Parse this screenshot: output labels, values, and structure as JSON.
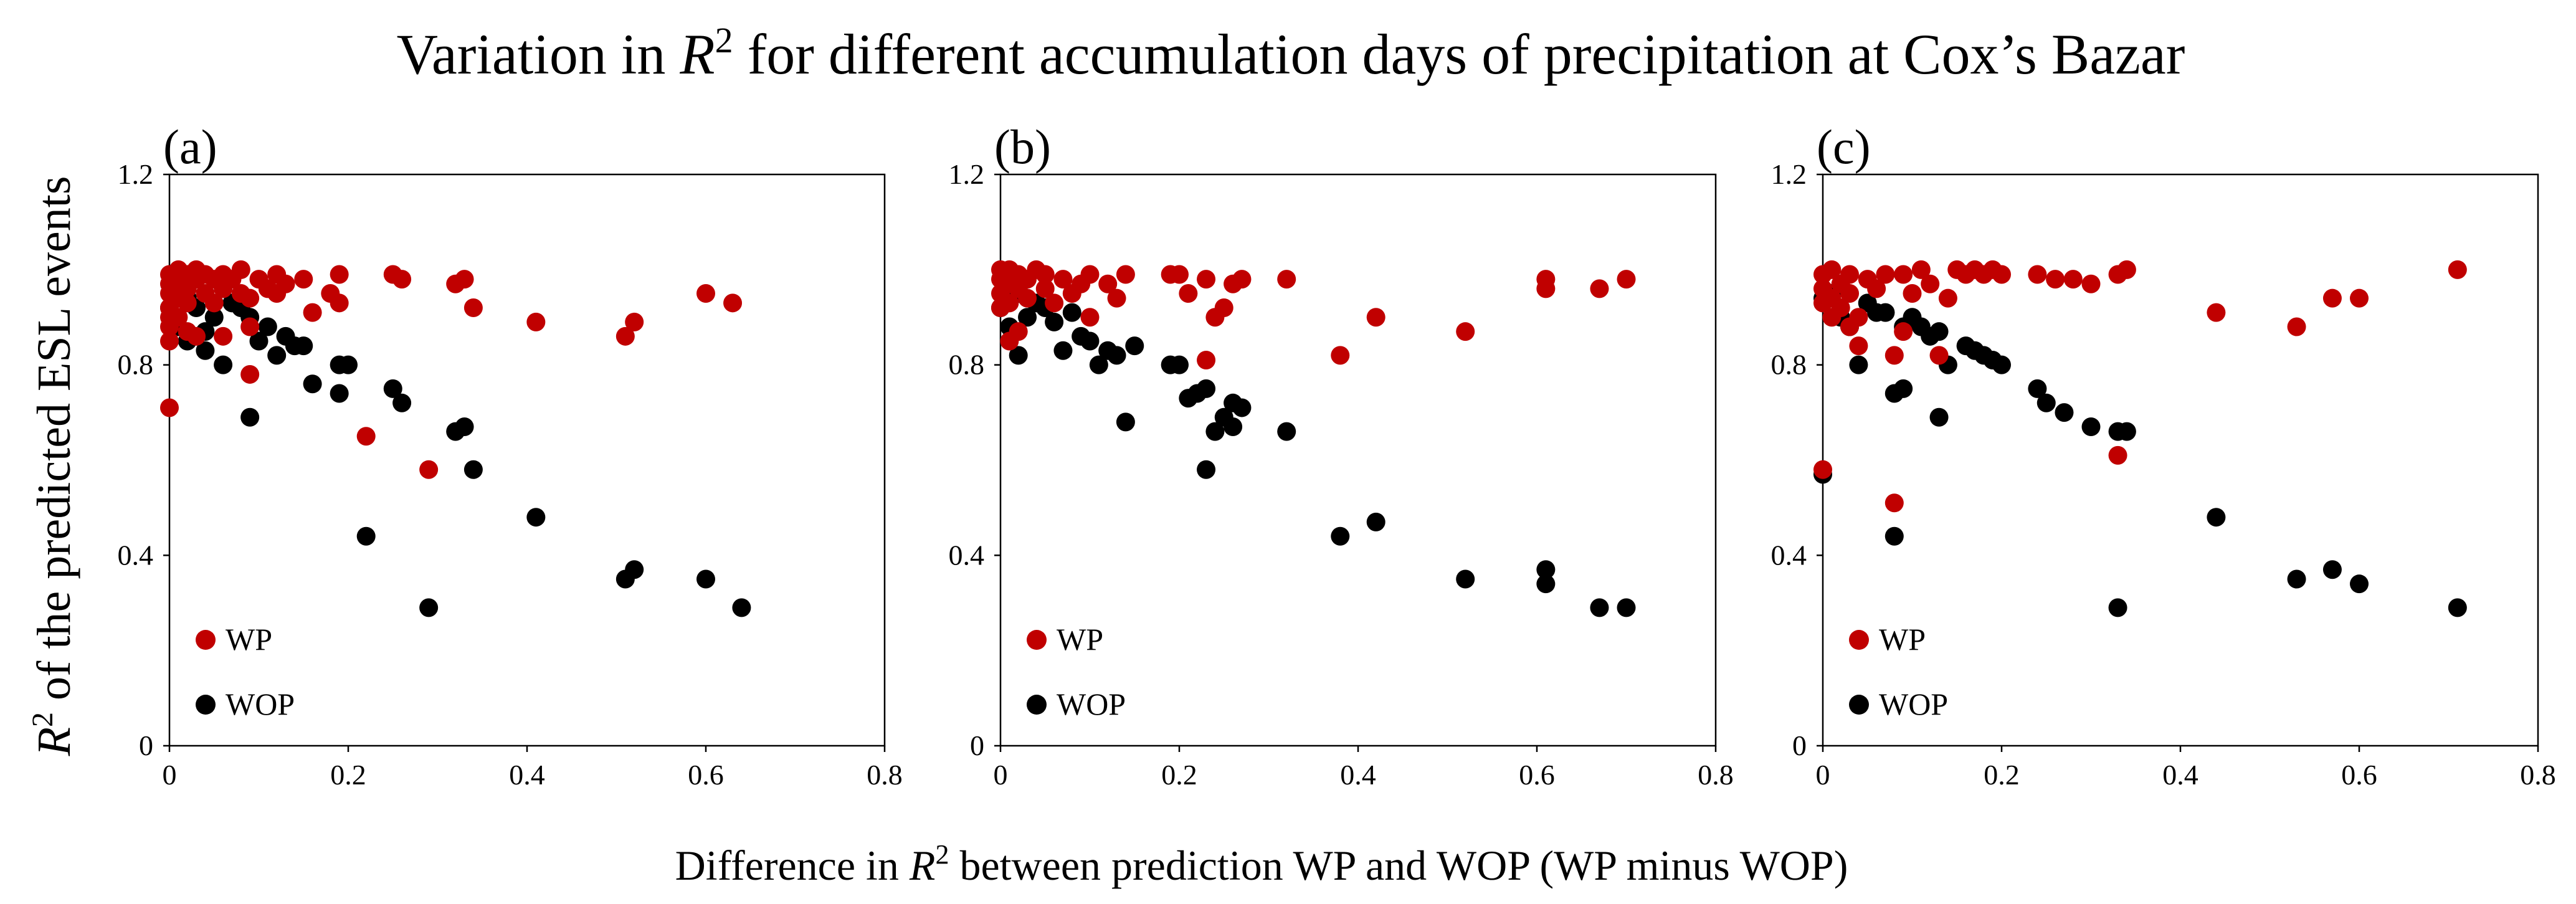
{
  "figure": {
    "title_prefix": "Variation in ",
    "title_r": "R",
    "title_sup": "2",
    "title_suffix": " for different accumulation days of precipitation at Cox’s Bazar",
    "ylabel_r": "R",
    "ylabel_sup": "2",
    "ylabel_rest": " of the predicted ESL events",
    "xlabel_prefix": "Difference in ",
    "xlabel_r": "R",
    "xlabel_sup": "2",
    "xlabel_suffix": " between prediction WP and WOP (WP minus WOP)"
  },
  "colors": {
    "wp": "#c00000",
    "wop": "#000000"
  },
  "chart_data": [
    {
      "type": "scatter",
      "panel_label": "(a)",
      "xlim": [
        0,
        0.8
      ],
      "ylim": [
        0,
        1.2
      ],
      "x_ticks": [
        "0",
        "0.2",
        "0.4",
        "0.6",
        "0.8"
      ],
      "y_ticks": [
        "0",
        "0.4",
        "0.8",
        "1.2"
      ],
      "legend": [
        "WP",
        "WOP"
      ],
      "legend_position": "bottom-left",
      "series": [
        {
          "name": "WP",
          "points": [
            [
              0.0,
              0.71
            ],
            [
              0.0,
              0.85
            ],
            [
              0.0,
              0.88
            ],
            [
              0.0,
              0.9
            ],
            [
              0.0,
              0.92
            ],
            [
              0.0,
              0.95
            ],
            [
              0.0,
              0.97
            ],
            [
              0.0,
              0.99
            ],
            [
              0.01,
              0.9
            ],
            [
              0.01,
              0.94
            ],
            [
              0.01,
              0.97
            ],
            [
              0.01,
              1.0
            ],
            [
              0.02,
              0.87
            ],
            [
              0.02,
              0.93
            ],
            [
              0.02,
              0.96
            ],
            [
              0.02,
              0.99
            ],
            [
              0.03,
              0.86
            ],
            [
              0.03,
              0.98
            ],
            [
              0.03,
              1.0
            ],
            [
              0.04,
              0.95
            ],
            [
              0.04,
              0.99
            ],
            [
              0.05,
              0.93
            ],
            [
              0.05,
              0.98
            ],
            [
              0.06,
              0.86
            ],
            [
              0.06,
              0.96
            ],
            [
              0.06,
              0.99
            ],
            [
              0.07,
              0.98
            ],
            [
              0.08,
              0.95
            ],
            [
              0.08,
              1.0
            ],
            [
              0.09,
              0.88
            ],
            [
              0.09,
              0.94
            ],
            [
              0.09,
              0.78
            ],
            [
              0.1,
              0.98
            ],
            [
              0.11,
              0.96
            ],
            [
              0.12,
              0.95
            ],
            [
              0.12,
              0.99
            ],
            [
              0.13,
              0.97
            ],
            [
              0.15,
              0.98
            ],
            [
              0.16,
              0.91
            ],
            [
              0.18,
              0.95
            ],
            [
              0.19,
              0.93
            ],
            [
              0.19,
              0.99
            ],
            [
              0.22,
              0.65
            ],
            [
              0.25,
              0.99
            ],
            [
              0.26,
              0.98
            ],
            [
              0.29,
              0.58
            ],
            [
              0.32,
              0.97
            ],
            [
              0.33,
              0.98
            ],
            [
              0.34,
              0.92
            ],
            [
              0.41,
              0.89
            ],
            [
              0.51,
              0.86
            ],
            [
              0.52,
              0.89
            ],
            [
              0.6,
              0.95
            ],
            [
              0.63,
              0.93
            ]
          ]
        },
        {
          "name": "WOP",
          "points": [
            [
              0.0,
              0.92
            ],
            [
              0.01,
              0.96
            ],
            [
              0.01,
              0.88
            ],
            [
              0.02,
              0.94
            ],
            [
              0.02,
              0.85
            ],
            [
              0.03,
              0.92
            ],
            [
              0.04,
              0.87
            ],
            [
              0.04,
              0.83
            ],
            [
              0.05,
              0.9
            ],
            [
              0.06,
              0.8
            ],
            [
              0.07,
              0.93
            ],
            [
              0.08,
              0.92
            ],
            [
              0.09,
              0.9
            ],
            [
              0.09,
              0.69
            ],
            [
              0.1,
              0.85
            ],
            [
              0.11,
              0.88
            ],
            [
              0.12,
              0.82
            ],
            [
              0.13,
              0.86
            ],
            [
              0.14,
              0.84
            ],
            [
              0.15,
              0.84
            ],
            [
              0.16,
              0.76
            ],
            [
              0.19,
              0.8
            ],
            [
              0.19,
              0.74
            ],
            [
              0.2,
              0.8
            ],
            [
              0.22,
              0.44
            ],
            [
              0.25,
              0.75
            ],
            [
              0.26,
              0.72
            ],
            [
              0.29,
              0.29
            ],
            [
              0.32,
              0.66
            ],
            [
              0.33,
              0.67
            ],
            [
              0.34,
              0.58
            ],
            [
              0.41,
              0.48
            ],
            [
              0.51,
              0.35
            ],
            [
              0.52,
              0.37
            ],
            [
              0.6,
              0.35
            ],
            [
              0.64,
              0.29
            ]
          ]
        }
      ]
    },
    {
      "type": "scatter",
      "panel_label": "(b)",
      "xlim": [
        0,
        0.8
      ],
      "ylim": [
        0,
        1.2
      ],
      "x_ticks": [
        "0",
        "0.2",
        "0.4",
        "0.6",
        "0.8"
      ],
      "y_ticks": [
        "0",
        "0.4",
        "0.8",
        "1.2"
      ],
      "legend": [
        "WP",
        "WOP"
      ],
      "legend_position": "bottom-left",
      "series": [
        {
          "name": "WP",
          "points": [
            [
              0.0,
              0.92
            ],
            [
              0.0,
              0.95
            ],
            [
              0.0,
              0.98
            ],
            [
              0.0,
              1.0
            ],
            [
              0.01,
              0.85
            ],
            [
              0.01,
              0.93
            ],
            [
              0.01,
              0.97
            ],
            [
              0.01,
              1.0
            ],
            [
              0.02,
              0.87
            ],
            [
              0.02,
              0.96
            ],
            [
              0.02,
              0.99
            ],
            [
              0.03,
              0.94
            ],
            [
              0.03,
              0.98
            ],
            [
              0.04,
              1.0
            ],
            [
              0.05,
              0.96
            ],
            [
              0.05,
              0.99
            ],
            [
              0.06,
              0.93
            ],
            [
              0.07,
              0.98
            ],
            [
              0.08,
              0.95
            ],
            [
              0.09,
              0.97
            ],
            [
              0.1,
              0.9
            ],
            [
              0.1,
              0.99
            ],
            [
              0.12,
              0.97
            ],
            [
              0.13,
              0.94
            ],
            [
              0.14,
              0.99
            ],
            [
              0.19,
              0.99
            ],
            [
              0.2,
              0.99
            ],
            [
              0.21,
              0.95
            ],
            [
              0.23,
              0.98
            ],
            [
              0.23,
              0.81
            ],
            [
              0.24,
              0.9
            ],
            [
              0.25,
              0.92
            ],
            [
              0.26,
              0.97
            ],
            [
              0.27,
              0.98
            ],
            [
              0.32,
              0.98
            ],
            [
              0.38,
              0.82
            ],
            [
              0.42,
              0.9
            ],
            [
              0.52,
              0.87
            ],
            [
              0.61,
              0.98
            ],
            [
              0.61,
              0.96
            ],
            [
              0.67,
              0.96
            ],
            [
              0.7,
              0.98
            ]
          ]
        },
        {
          "name": "WOP",
          "points": [
            [
              0.0,
              0.92
            ],
            [
              0.01,
              0.88
            ],
            [
              0.02,
              0.95
            ],
            [
              0.02,
              0.82
            ],
            [
              0.03,
              0.9
            ],
            [
              0.04,
              0.93
            ],
            [
              0.05,
              0.92
            ],
            [
              0.06,
              0.89
            ],
            [
              0.07,
              0.83
            ],
            [
              0.08,
              0.91
            ],
            [
              0.09,
              0.86
            ],
            [
              0.1,
              0.85
            ],
            [
              0.11,
              0.8
            ],
            [
              0.12,
              0.83
            ],
            [
              0.13,
              0.82
            ],
            [
              0.14,
              0.68
            ],
            [
              0.15,
              0.84
            ],
            [
              0.19,
              0.8
            ],
            [
              0.2,
              0.8
            ],
            [
              0.21,
              0.73
            ],
            [
              0.22,
              0.74
            ],
            [
              0.23,
              0.75
            ],
            [
              0.23,
              0.58
            ],
            [
              0.24,
              0.66
            ],
            [
              0.25,
              0.69
            ],
            [
              0.26,
              0.67
            ],
            [
              0.26,
              0.72
            ],
            [
              0.27,
              0.71
            ],
            [
              0.32,
              0.66
            ],
            [
              0.38,
              0.44
            ],
            [
              0.42,
              0.47
            ],
            [
              0.52,
              0.35
            ],
            [
              0.61,
              0.37
            ],
            [
              0.61,
              0.34
            ],
            [
              0.67,
              0.29
            ],
            [
              0.7,
              0.29
            ]
          ]
        }
      ]
    },
    {
      "type": "scatter",
      "panel_label": "(c)",
      "xlim": [
        0,
        0.8
      ],
      "ylim": [
        0,
        1.2
      ],
      "x_ticks": [
        "0",
        "0.2",
        "0.4",
        "0.6",
        "0.8"
      ],
      "y_ticks": [
        "0",
        "0.4",
        "0.8",
        "1.2"
      ],
      "legend": [
        "WP",
        "WOP"
      ],
      "legend_position": "bottom-left",
      "series": [
        {
          "name": "WP",
          "points": [
            [
              0.0,
              0.58
            ],
            [
              0.0,
              0.93
            ],
            [
              0.0,
              0.96
            ],
            [
              0.0,
              0.99
            ],
            [
              0.01,
              0.9
            ],
            [
              0.01,
              0.94
            ],
            [
              0.01,
              1.0
            ],
            [
              0.02,
              0.92
            ],
            [
              0.02,
              0.97
            ],
            [
              0.03,
              0.88
            ],
            [
              0.03,
              0.95
            ],
            [
              0.03,
              0.99
            ],
            [
              0.04,
              0.84
            ],
            [
              0.04,
              0.9
            ],
            [
              0.05,
              0.98
            ],
            [
              0.06,
              0.96
            ],
            [
              0.07,
              0.99
            ],
            [
              0.08,
              0.51
            ],
            [
              0.08,
              0.82
            ],
            [
              0.09,
              0.87
            ],
            [
              0.09,
              0.99
            ],
            [
              0.1,
              0.95
            ],
            [
              0.11,
              1.0
            ],
            [
              0.12,
              0.97
            ],
            [
              0.13,
              0.82
            ],
            [
              0.14,
              0.94
            ],
            [
              0.15,
              1.0
            ],
            [
              0.16,
              0.99
            ],
            [
              0.17,
              1.0
            ],
            [
              0.18,
              0.99
            ],
            [
              0.19,
              1.0
            ],
            [
              0.2,
              0.99
            ],
            [
              0.24,
              0.99
            ],
            [
              0.26,
              0.98
            ],
            [
              0.28,
              0.98
            ],
            [
              0.3,
              0.97
            ],
            [
              0.33,
              0.61
            ],
            [
              0.33,
              0.99
            ],
            [
              0.34,
              1.0
            ],
            [
              0.44,
              0.91
            ],
            [
              0.53,
              0.88
            ],
            [
              0.57,
              0.94
            ],
            [
              0.6,
              0.94
            ],
            [
              0.71,
              1.0
            ]
          ]
        },
        {
          "name": "WOP",
          "points": [
            [
              0.0,
              0.57
            ],
            [
              0.0,
              0.94
            ],
            [
              0.01,
              0.95
            ],
            [
              0.02,
              0.9
            ],
            [
              0.03,
              0.88
            ],
            [
              0.04,
              0.8
            ],
            [
              0.05,
              0.93
            ],
            [
              0.06,
              0.91
            ],
            [
              0.07,
              0.91
            ],
            [
              0.08,
              0.44
            ],
            [
              0.08,
              0.74
            ],
            [
              0.09,
              0.88
            ],
            [
              0.09,
              0.75
            ],
            [
              0.1,
              0.9
            ],
            [
              0.11,
              0.88
            ],
            [
              0.12,
              0.86
            ],
            [
              0.13,
              0.69
            ],
            [
              0.13,
              0.87
            ],
            [
              0.14,
              0.8
            ],
            [
              0.16,
              0.84
            ],
            [
              0.17,
              0.83
            ],
            [
              0.18,
              0.82
            ],
            [
              0.19,
              0.81
            ],
            [
              0.2,
              0.8
            ],
            [
              0.24,
              0.75
            ],
            [
              0.25,
              0.72
            ],
            [
              0.27,
              0.7
            ],
            [
              0.3,
              0.67
            ],
            [
              0.33,
              0.66
            ],
            [
              0.33,
              0.29
            ],
            [
              0.34,
              0.66
            ],
            [
              0.44,
              0.48
            ],
            [
              0.53,
              0.35
            ],
            [
              0.57,
              0.37
            ],
            [
              0.6,
              0.34
            ],
            [
              0.71,
              0.29
            ]
          ]
        }
      ]
    }
  ]
}
